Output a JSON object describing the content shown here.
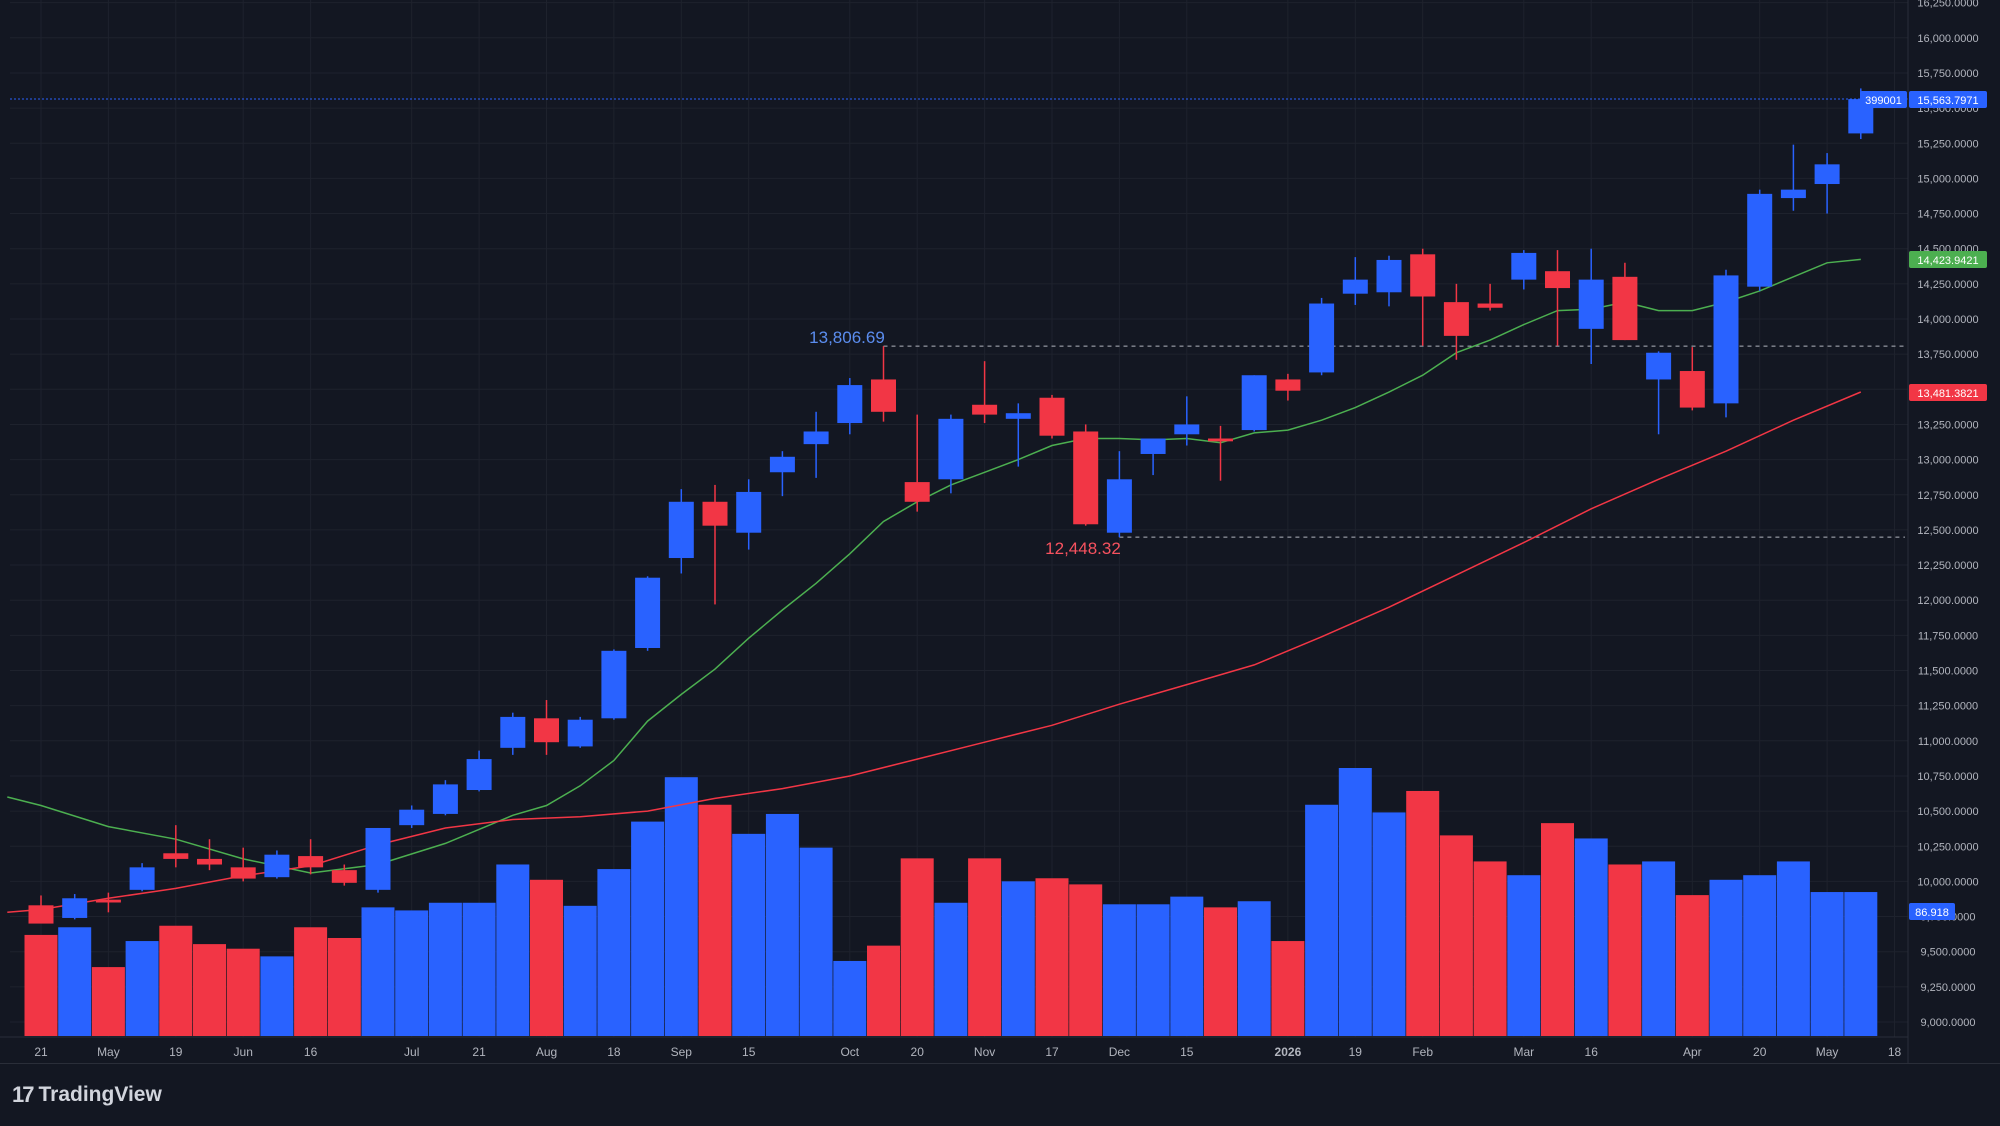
{
  "app": {
    "brand": "TradingView",
    "logo_glyph": "17"
  },
  "colors": {
    "background": "#131722",
    "up": "#2962ff",
    "down": "#f23645",
    "ma_fast": "#4caf50",
    "ma_slow": "#f23645",
    "grid": "#1e222d",
    "axis_text": "#b2b5be"
  },
  "price_labels": {
    "symbol_tag": "399001",
    "last_price": "15,563.7971",
    "ma_fast_value": "14,423.9421",
    "ma_slow_value": "13,481.3821",
    "volume_value": "86.918"
  },
  "annotations": {
    "high_label": "13,806.69",
    "low_label": "12,448.32"
  },
  "chart_data": {
    "type": "candlestick",
    "interval": "weekly",
    "y_axis": {
      "ticks": [
        "9,000.0000",
        "9,250.0000",
        "9,500.0000",
        "9,750.0000",
        "10,000.0000",
        "10,250.0000",
        "10,500.0000",
        "10,750.0000",
        "11,000.0000",
        "11,250.0000",
        "11,500.0000",
        "11,750.0000",
        "12,000.0000",
        "12,250.0000",
        "12,500.0000",
        "12,750.0000",
        "13,000.0000",
        "13,250.0000",
        "13,500.0000",
        "13,750.0000",
        "14,000.0000",
        "14,250.0000",
        "14,500.0000",
        "14,750.0000",
        "15,000.0000",
        "15,250.0000",
        "15,500.0000",
        "15,750.0000",
        "16,000.0000",
        "16,250.0000"
      ],
      "ylim": [
        8980,
        16250
      ]
    },
    "x_axis": {
      "ticks": [
        {
          "label": "21",
          "i": 0
        },
        {
          "label": "May",
          "i": 2
        },
        {
          "label": "19",
          "i": 4
        },
        {
          "label": "Jun",
          "i": 6
        },
        {
          "label": "16",
          "i": 8
        },
        {
          "label": "Jul",
          "i": 11
        },
        {
          "label": "21",
          "i": 13
        },
        {
          "label": "Aug",
          "i": 15
        },
        {
          "label": "18",
          "i": 17
        },
        {
          "label": "Sep",
          "i": 19
        },
        {
          "label": "15",
          "i": 21
        },
        {
          "label": "Oct",
          "i": 24
        },
        {
          "label": "20",
          "i": 26
        },
        {
          "label": "Nov",
          "i": 28
        },
        {
          "label": "17",
          "i": 30
        },
        {
          "label": "Dec",
          "i": 32
        },
        {
          "label": "15",
          "i": 34
        },
        {
          "label": "2026",
          "i": 37
        },
        {
          "label": "19",
          "i": 39
        },
        {
          "label": "Feb",
          "i": 41
        },
        {
          "label": "Mar",
          "i": 44
        },
        {
          "label": "16",
          "i": 46
        },
        {
          "label": "Apr",
          "i": 49
        },
        {
          "label": "20",
          "i": 51
        },
        {
          "label": "May",
          "i": 53
        },
        {
          "label": "18",
          "i": 55
        }
      ]
    },
    "candles": [
      {
        "o": 9830,
        "h": 9900,
        "l": 9720,
        "c": 9700
      },
      {
        "o": 9740,
        "h": 9910,
        "l": 9730,
        "c": 9880
      },
      {
        "o": 9870,
        "h": 9920,
        "l": 9780,
        "c": 9850
      },
      {
        "o": 9940,
        "h": 10130,
        "l": 9930,
        "c": 10100
      },
      {
        "o": 10200,
        "h": 10400,
        "l": 10100,
        "c": 10160
      },
      {
        "o": 10160,
        "h": 10300,
        "l": 10080,
        "c": 10120
      },
      {
        "o": 10100,
        "h": 10240,
        "l": 10000,
        "c": 10020
      },
      {
        "o": 10030,
        "h": 10220,
        "l": 10020,
        "c": 10190
      },
      {
        "o": 10180,
        "h": 10300,
        "l": 10050,
        "c": 10100
      },
      {
        "o": 10080,
        "h": 10120,
        "l": 9970,
        "c": 9990
      },
      {
        "o": 9940,
        "h": 10380,
        "l": 9920,
        "c": 10380
      },
      {
        "o": 10400,
        "h": 10540,
        "l": 10380,
        "c": 10510
      },
      {
        "o": 10480,
        "h": 10720,
        "l": 10470,
        "c": 10690
      },
      {
        "o": 10650,
        "h": 10930,
        "l": 10640,
        "c": 10870
      },
      {
        "o": 10950,
        "h": 11200,
        "l": 10900,
        "c": 11170
      },
      {
        "o": 11160,
        "h": 11290,
        "l": 10900,
        "c": 10990
      },
      {
        "o": 10960,
        "h": 11170,
        "l": 10950,
        "c": 11150
      },
      {
        "o": 11160,
        "h": 11650,
        "l": 11150,
        "c": 11640
      },
      {
        "o": 11660,
        "h": 12170,
        "l": 11640,
        "c": 12160
      },
      {
        "o": 12300,
        "h": 12790,
        "l": 12190,
        "c": 12700
      },
      {
        "o": 12700,
        "h": 12820,
        "l": 11970,
        "c": 12530
      },
      {
        "o": 12480,
        "h": 12860,
        "l": 12360,
        "c": 12770
      },
      {
        "o": 12910,
        "h": 13060,
        "l": 12740,
        "c": 13020
      },
      {
        "o": 13110,
        "h": 13340,
        "l": 12870,
        "c": 13200
      },
      {
        "o": 13260,
        "h": 13580,
        "l": 13180,
        "c": 13530
      },
      {
        "o": 13570,
        "h": 13806.69,
        "l": 13270,
        "c": 13340
      },
      {
        "o": 12840,
        "h": 13320,
        "l": 12630,
        "c": 12700
      },
      {
        "o": 12860,
        "h": 13320,
        "l": 12760,
        "c": 13290
      },
      {
        "o": 13390,
        "h": 13700,
        "l": 13260,
        "c": 13320
      },
      {
        "o": 13290,
        "h": 13400,
        "l": 12950,
        "c": 13330
      },
      {
        "o": 13440,
        "h": 13460,
        "l": 13150,
        "c": 13170
      },
      {
        "o": 13200,
        "h": 13250,
        "l": 12530,
        "c": 12540
      },
      {
        "o": 12480,
        "h": 13060,
        "l": 12448.32,
        "c": 12860
      },
      {
        "o": 13040,
        "h": 13150,
        "l": 12890,
        "c": 13150
      },
      {
        "o": 13180,
        "h": 13450,
        "l": 13100,
        "c": 13250
      },
      {
        "o": 13150,
        "h": 13240,
        "l": 12850,
        "c": 13130
      },
      {
        "o": 13210,
        "h": 13600,
        "l": 13200,
        "c": 13600
      },
      {
        "o": 13570,
        "h": 13610,
        "l": 13420,
        "c": 13490
      },
      {
        "o": 13620,
        "h": 14150,
        "l": 13600,
        "c": 14110
      },
      {
        "o": 14180,
        "h": 14440,
        "l": 14100,
        "c": 14280
      },
      {
        "o": 14190,
        "h": 14450,
        "l": 14090,
        "c": 14420
      },
      {
        "o": 14460,
        "h": 14500,
        "l": 13810,
        "c": 14160
      },
      {
        "o": 14120,
        "h": 14250,
        "l": 13710,
        "c": 13880
      },
      {
        "o": 14110,
        "h": 14250,
        "l": 14060,
        "c": 14080
      },
      {
        "o": 14280,
        "h": 14490,
        "l": 14210,
        "c": 14470
      },
      {
        "o": 14340,
        "h": 14490,
        "l": 13810,
        "c": 14220
      },
      {
        "o": 13930,
        "h": 14500,
        "l": 13680,
        "c": 14280
      },
      {
        "o": 14300,
        "h": 14400,
        "l": 13850,
        "c": 13850
      },
      {
        "o": 13570,
        "h": 13770,
        "l": 13180,
        "c": 13760
      },
      {
        "o": 13630,
        "h": 13800,
        "l": 13350,
        "c": 13370
      },
      {
        "o": 13400,
        "h": 14350,
        "l": 13300,
        "c": 14310
      },
      {
        "o": 14230,
        "h": 14920,
        "l": 14200,
        "c": 14890
      },
      {
        "o": 14860,
        "h": 15240,
        "l": 14770,
        "c": 14920
      },
      {
        "o": 14960,
        "h": 15180,
        "l": 14750,
        "c": 15100
      },
      {
        "o": 15320,
        "h": 15640,
        "l": 15280,
        "c": 15563.7971
      }
    ],
    "volume": [
      {
        "v": 66,
        "up": false
      },
      {
        "v": 71,
        "up": true
      },
      {
        "v": 45,
        "up": false
      },
      {
        "v": 62,
        "up": true
      },
      {
        "v": 72,
        "up": false
      },
      {
        "v": 60,
        "up": false
      },
      {
        "v": 57,
        "up": false
      },
      {
        "v": 52,
        "up": true
      },
      {
        "v": 71,
        "up": false
      },
      {
        "v": 64,
        "up": false
      },
      {
        "v": 84,
        "up": true
      },
      {
        "v": 82,
        "up": true
      },
      {
        "v": 87,
        "up": true
      },
      {
        "v": 87,
        "up": true
      },
      {
        "v": 112,
        "up": true
      },
      {
        "v": 102,
        "up": false
      },
      {
        "v": 85,
        "up": true
      },
      {
        "v": 109,
        "up": true
      },
      {
        "v": 140,
        "up": true
      },
      {
        "v": 169,
        "up": true
      },
      {
        "v": 151,
        "up": false
      },
      {
        "v": 132,
        "up": true
      },
      {
        "v": 145,
        "up": true
      },
      {
        "v": 123,
        "up": true
      },
      {
        "v": 49,
        "up": true
      },
      {
        "v": 59,
        "up": false
      },
      {
        "v": 116,
        "up": false
      },
      {
        "v": 87,
        "up": true
      },
      {
        "v": 116,
        "up": false
      },
      {
        "v": 101,
        "up": true
      },
      {
        "v": 103,
        "up": false
      },
      {
        "v": 99,
        "up": false
      },
      {
        "v": 86,
        "up": true
      },
      {
        "v": 86,
        "up": true
      },
      {
        "v": 91,
        "up": true
      },
      {
        "v": 84,
        "up": false
      },
      {
        "v": 88,
        "up": true
      },
      {
        "v": 62,
        "up": false
      },
      {
        "v": 151,
        "up": true
      },
      {
        "v": 175,
        "up": true
      },
      {
        "v": 146,
        "up": true
      },
      {
        "v": 160,
        "up": false
      },
      {
        "v": 131,
        "up": false
      },
      {
        "v": 114,
        "up": false
      },
      {
        "v": 105,
        "up": true
      },
      {
        "v": 139,
        "up": false
      },
      {
        "v": 129,
        "up": true
      },
      {
        "v": 112,
        "up": false
      },
      {
        "v": 114,
        "up": true
      },
      {
        "v": 92,
        "up": false
      },
      {
        "v": 102,
        "up": true
      },
      {
        "v": 105,
        "up": true
      },
      {
        "v": 114,
        "up": true
      },
      {
        "v": 94,
        "up": true
      },
      {
        "v": 94,
        "up": true
      }
    ],
    "volume_max": 175,
    "ma_fast": [
      [
        0,
        10540
      ],
      [
        2,
        10390
      ],
      [
        4,
        10300
      ],
      [
        6,
        10160
      ],
      [
        8,
        10060
      ],
      [
        10,
        10120
      ],
      [
        12,
        10270
      ],
      [
        14,
        10470
      ],
      [
        15,
        10540
      ],
      [
        16,
        10680
      ],
      [
        17,
        10860
      ],
      [
        18,
        11140
      ],
      [
        19,
        11330
      ],
      [
        20,
        11510
      ],
      [
        21,
        11730
      ],
      [
        22,
        11930
      ],
      [
        23,
        12120
      ],
      [
        24,
        12330
      ],
      [
        25,
        12560
      ],
      [
        26,
        12700
      ],
      [
        27,
        12820
      ],
      [
        28,
        12910
      ],
      [
        29,
        13000
      ],
      [
        30,
        13100
      ],
      [
        31,
        13150
      ],
      [
        32,
        13150
      ],
      [
        33,
        13140
      ],
      [
        34,
        13150
      ],
      [
        35,
        13120
      ],
      [
        36,
        13190
      ],
      [
        37,
        13210
      ],
      [
        38,
        13280
      ],
      [
        39,
        13370
      ],
      [
        40,
        13480
      ],
      [
        41,
        13600
      ],
      [
        42,
        13760
      ],
      [
        43,
        13850
      ],
      [
        44,
        13960
      ],
      [
        45,
        14060
      ],
      [
        46,
        14070
      ],
      [
        47,
        14120
      ],
      [
        48,
        14060
      ],
      [
        49,
        14060
      ],
      [
        50,
        14120
      ],
      [
        51,
        14200
      ],
      [
        52,
        14300
      ],
      [
        53,
        14400
      ],
      [
        54,
        14424
      ]
    ],
    "ma_slow": [
      [
        0,
        9800
      ],
      [
        2,
        9880
      ],
      [
        4,
        9950
      ],
      [
        6,
        10040
      ],
      [
        8,
        10110
      ],
      [
        10,
        10260
      ],
      [
        12,
        10380
      ],
      [
        14,
        10440
      ],
      [
        16,
        10460
      ],
      [
        18,
        10500
      ],
      [
        20,
        10590
      ],
      [
        22,
        10660
      ],
      [
        24,
        10750
      ],
      [
        26,
        10870
      ],
      [
        28,
        10990
      ],
      [
        30,
        11110
      ],
      [
        32,
        11260
      ],
      [
        34,
        11400
      ],
      [
        36,
        11540
      ],
      [
        38,
        11740
      ],
      [
        40,
        11950
      ],
      [
        42,
        12180
      ],
      [
        44,
        12410
      ],
      [
        46,
        12650
      ],
      [
        48,
        12860
      ],
      [
        50,
        13060
      ],
      [
        52,
        13280
      ],
      [
        54,
        13481
      ]
    ]
  }
}
